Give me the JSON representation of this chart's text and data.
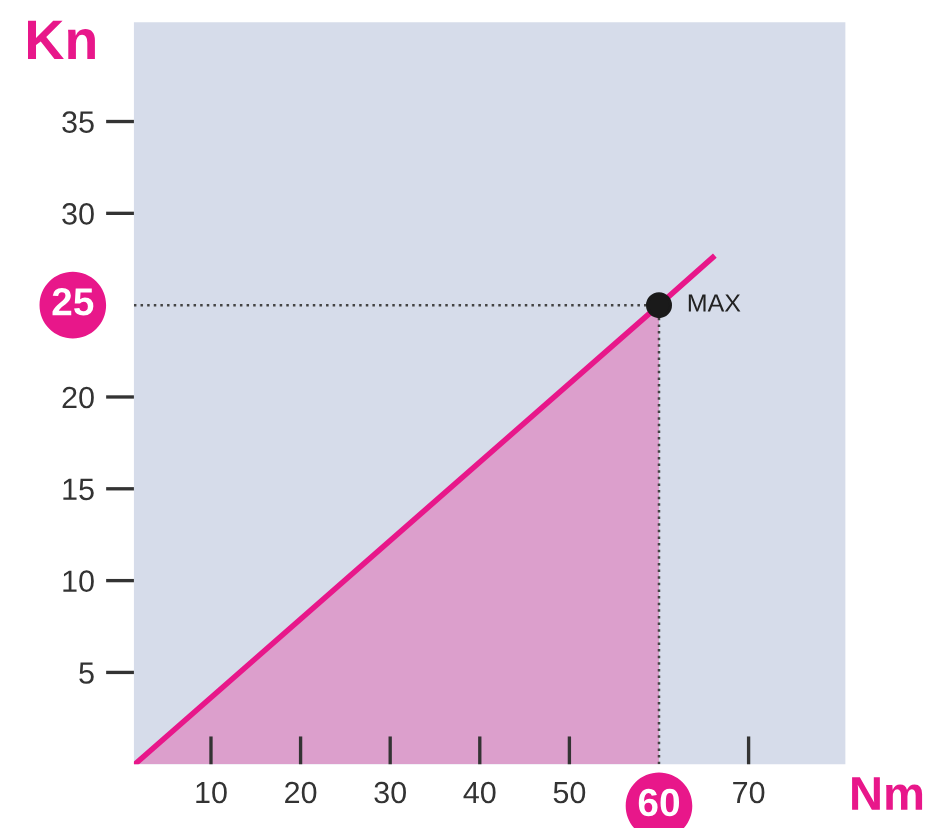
{
  "chart_data": {
    "type": "area",
    "xlabel": "Nm",
    "ylabel": "Kn",
    "xlim": [
      1.4,
      80.8
    ],
    "ylim": [
      0,
      40.4
    ],
    "xticks": [
      10,
      20,
      30,
      40,
      50,
      70
    ],
    "yticks": [
      5,
      10,
      15,
      20,
      30,
      35
    ],
    "series": [
      {
        "color": "#dc9fcc",
        "x": [
          1.5,
          60
        ],
        "values": [
          0,
          25
        ]
      },
      {
        "type": "line",
        "color": "#e8178a",
        "x": [
          1.5,
          60,
          66
        ],
        "values": [
          0,
          25,
          27.6
        ]
      },
      {
        "type": "scatter",
        "color": "#1a1a1a",
        "x": [
          60
        ],
        "values": [
          25
        ]
      }
    ],
    "ref_lines": [
      {
        "axis": "y",
        "value": 25,
        "label": "25",
        "color": "#444444",
        "line_style": "dotted"
      },
      {
        "axis": "x",
        "value": 60,
        "label": "60",
        "color": "#444444",
        "line_style": "dotted"
      }
    ],
    "annotations": [
      {
        "text": "MAX",
        "x": 60,
        "y": 25
      }
    ],
    "grid": false,
    "legend": false
  }
}
